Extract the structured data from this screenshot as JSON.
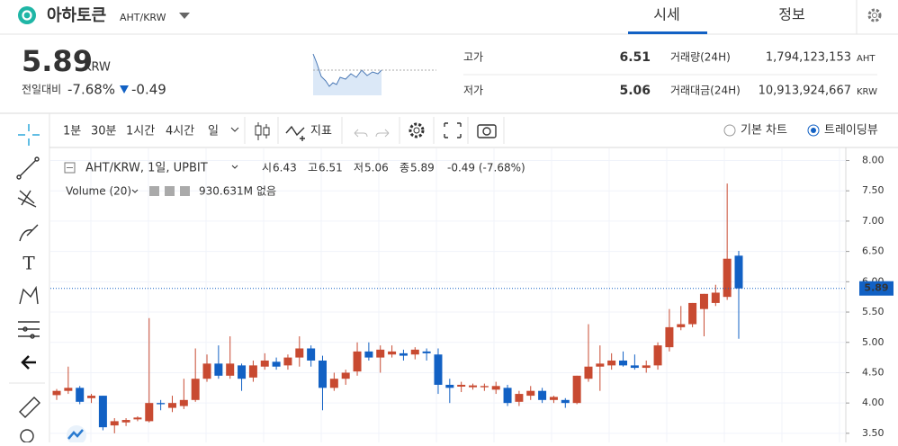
{
  "header": {
    "coin_name": "아하토큰",
    "market": "AHT/KRW",
    "tabs": [
      "시세",
      "정보"
    ]
  },
  "price_panel": {
    "price": 5.89,
    "unit": "KRW",
    "change_label": "전일대비",
    "change_rate": "-7.68%",
    "change_amount": "-0.49",
    "stats": [
      {
        "label": "고가",
        "value": "6.51",
        "volume_label": "거래량(24H)",
        "volume": "1,794,123,153",
        "volume_unit": "AHT"
      },
      {
        "label": "저가",
        "value": "5.06",
        "volume_label": "거래대금(24H)",
        "volume": "10,913,924,667",
        "volume_unit": "KRW"
      }
    ]
  },
  "toolbar": {
    "intervals": [
      "1분",
      "30분",
      "1시간",
      "4시간",
      "일"
    ],
    "indicator": "지표",
    "modes": [
      "기본 차트",
      "트레이딩뷰"
    ]
  },
  "legend": {
    "symbol": "AHT/KRW, 1일, UPBIT",
    "ohlc": [
      {
        "label": "시",
        "value": "6.43"
      },
      {
        "label": "고",
        "value": "6.51"
      },
      {
        "label": "저",
        "value": "5.06"
      },
      {
        "label": "종",
        "value": "5.89"
      }
    ],
    "change": "-0.49 (-7.68%)",
    "volume_name": "Volume (20)",
    "volume_value": "930.631M",
    "volume_extra": "없음"
  },
  "chart_data": {
    "type": "candlestick",
    "colors": {
      "up": "#c84a31",
      "down": "#1261c4"
    },
    "ylim": [
      3.35,
      8.2
    ],
    "yticks": [
      {
        "value": 3.5,
        "label": "3.50"
      },
      {
        "value": 4,
        "label": "4.00"
      },
      {
        "value": 4.5,
        "label": "4.50"
      },
      {
        "value": 5,
        "label": "5.00"
      },
      {
        "value": 5.5,
        "label": "5.50"
      },
      {
        "value": 6,
        "label": "6.00"
      },
      {
        "value": 6.5,
        "label": "6.50"
      },
      {
        "value": 7,
        "label": "7.00"
      },
      {
        "value": 7.5,
        "label": "7.50"
      },
      {
        "value": 8,
        "label": "8.00"
      }
    ],
    "grid": true,
    "current_price": 5.89,
    "ohlc": [
      [
        4.13,
        4.23,
        4.05,
        4.2
      ],
      [
        4.2,
        4.6,
        4.15,
        4.25
      ],
      [
        4.25,
        4.28,
        3.98,
        4.02
      ],
      [
        4.08,
        4.15,
        4.0,
        4.12
      ],
      [
        4.12,
        4.12,
        3.55,
        3.6
      ],
      [
        3.63,
        3.75,
        3.5,
        3.7
      ],
      [
        3.68,
        3.75,
        3.62,
        3.72
      ],
      [
        3.73,
        3.78,
        3.7,
        3.76
      ],
      [
        3.7,
        5.4,
        3.68,
        4.0
      ],
      [
        4.0,
        4.05,
        3.88,
        3.98
      ],
      [
        3.92,
        4.12,
        3.85,
        4.0
      ],
      [
        3.95,
        4.4,
        3.9,
        4.05
      ],
      [
        4.05,
        4.9,
        4.02,
        4.4
      ],
      [
        4.4,
        4.8,
        4.35,
        4.65
      ],
      [
        4.65,
        4.95,
        4.4,
        4.45
      ],
      [
        4.45,
        5.1,
        4.4,
        4.65
      ],
      [
        4.62,
        4.65,
        4.2,
        4.4
      ],
      [
        4.42,
        4.7,
        4.35,
        4.62
      ],
      [
        4.6,
        4.82,
        4.55,
        4.7
      ],
      [
        4.68,
        4.75,
        4.55,
        4.6
      ],
      [
        4.62,
        4.8,
        4.55,
        4.75
      ],
      [
        4.75,
        5.1,
        4.6,
        4.9
      ],
      [
        4.9,
        4.95,
        4.6,
        4.7
      ],
      [
        4.7,
        4.78,
        3.88,
        4.25
      ],
      [
        4.25,
        4.5,
        4.2,
        4.4
      ],
      [
        4.4,
        4.55,
        4.3,
        4.5
      ],
      [
        4.52,
        5.0,
        4.45,
        4.85
      ],
      [
        4.85,
        5.0,
        4.7,
        4.75
      ],
      [
        4.75,
        4.95,
        4.5,
        4.88
      ],
      [
        4.8,
        4.95,
        4.75,
        4.85
      ],
      [
        4.82,
        4.88,
        4.7,
        4.78
      ],
      [
        4.8,
        4.92,
        4.72,
        4.88
      ],
      [
        4.85,
        4.9,
        4.7,
        4.82
      ],
      [
        4.8,
        4.9,
        4.15,
        4.3
      ],
      [
        4.3,
        4.4,
        4.0,
        4.25
      ],
      [
        4.27,
        4.35,
        4.18,
        4.3
      ],
      [
        4.26,
        4.32,
        4.22,
        4.29
      ],
      [
        4.26,
        4.32,
        4.2,
        4.28
      ],
      [
        4.22,
        4.35,
        4.15,
        4.28
      ],
      [
        4.25,
        4.3,
        3.95,
        4.0
      ],
      [
        4.02,
        4.2,
        3.95,
        4.15
      ],
      [
        4.12,
        4.28,
        4.05,
        4.2
      ],
      [
        4.2,
        4.25,
        4.0,
        4.05
      ],
      [
        4.05,
        4.12,
        4.0,
        4.1
      ],
      [
        4.05,
        4.08,
        3.92,
        4.0
      ],
      [
        4.0,
        4.45,
        3.98,
        4.45
      ],
      [
        4.4,
        5.3,
        4.35,
        4.6
      ],
      [
        4.6,
        4.95,
        4.2,
        4.65
      ],
      [
        4.62,
        4.82,
        4.55,
        4.7
      ],
      [
        4.7,
        4.85,
        4.6,
        4.62
      ],
      [
        4.62,
        4.8,
        4.55,
        4.58
      ],
      [
        4.58,
        4.7,
        4.5,
        4.62
      ],
      [
        4.62,
        5.0,
        4.55,
        4.95
      ],
      [
        4.92,
        5.55,
        4.85,
        5.25
      ],
      [
        5.25,
        5.6,
        5.2,
        5.3
      ],
      [
        5.3,
        5.65,
        5.25,
        5.65
      ],
      [
        5.55,
        5.8,
        5.1,
        5.8
      ],
      [
        5.65,
        5.95,
        5.6,
        5.82
      ],
      [
        5.75,
        7.62,
        5.7,
        6.38
      ],
      [
        6.43,
        6.51,
        5.06,
        5.89
      ]
    ]
  }
}
